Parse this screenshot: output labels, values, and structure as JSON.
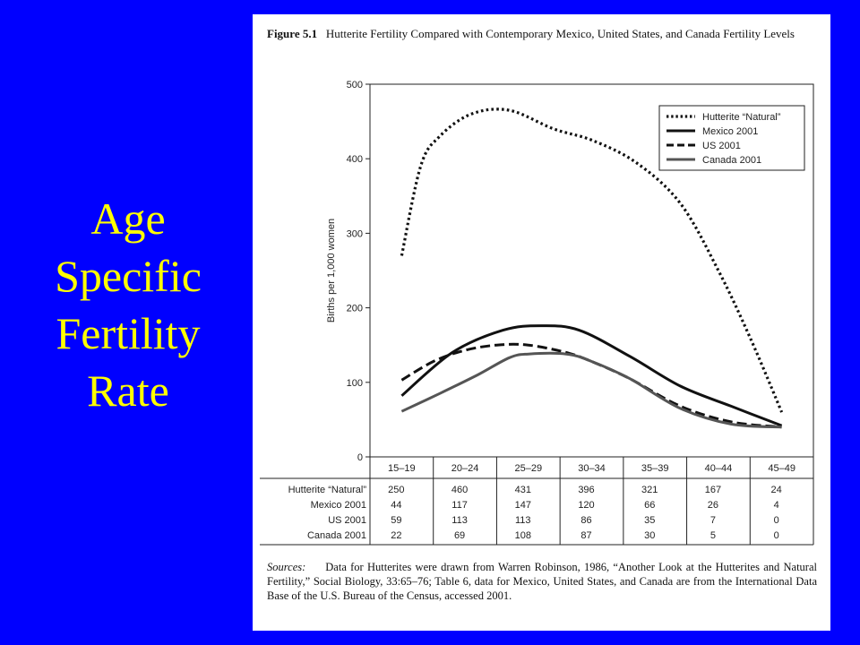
{
  "slide": {
    "title_lines": [
      "Age",
      "Specific",
      "Fertility",
      "Rate"
    ]
  },
  "figure": {
    "label": "Figure 5.1",
    "caption": "Hutterite Fertility Compared with Contemporary Mexico, United States, and Canada Fertility Levels",
    "sources_label": "Sources:",
    "sources_text": "Data for Hutterites were drawn from Warren Robinson, 1986, “Another Look at the Hutterites and Natural Fertility,” Social Biology, 33:65–76; Table 6, data for Mexico, United States, and Canada are from the International Data Base of the U.S. Bureau of the Census, accessed 2001."
  },
  "colors": {
    "background": "#0000ff",
    "title": "#ffff00",
    "panel": "#ffffff",
    "canada_line": "#555555",
    "ink": "#111111"
  },
  "chart_data": {
    "type": "line",
    "categories": [
      "15–19",
      "20–24",
      "25–29",
      "30–34",
      "35–39",
      "40–44",
      "45–49"
    ],
    "ylabel": "Births per 1,000 women",
    "xlabel": "",
    "ylim": [
      0,
      500
    ],
    "yticks": [
      0,
      100,
      200,
      300,
      400,
      500
    ],
    "legend_position": "top-right",
    "grid": false,
    "series": [
      {
        "name": "Hutterite “Natural”",
        "style": "dotted",
        "x": [
          0,
          0.3,
          0.6,
          1.1,
          1.7,
          2.4,
          3.0,
          3.7,
          4.4,
          5.0,
          5.5,
          6.0
        ],
        "values": [
          270,
          390,
          430,
          460,
          465,
          440,
          425,
          395,
          340,
          250,
          160,
          60
        ]
      },
      {
        "name": "Mexico 2001",
        "style": "solid",
        "x": [
          0,
          0.8,
          1.6,
          2.2,
          2.8,
          3.6,
          4.4,
          5.2,
          6.0
        ],
        "values": [
          82,
          140,
          170,
          176,
          170,
          135,
          95,
          68,
          42
        ]
      },
      {
        "name": "US 2001",
        "style": "dashed",
        "x": [
          0,
          0.5,
          1.0,
          1.5,
          2.0,
          2.6,
          3.0,
          3.6,
          4.4,
          5.2,
          6.0
        ],
        "values": [
          103,
          128,
          143,
          150,
          150,
          140,
          128,
          105,
          68,
          47,
          40
        ]
      },
      {
        "name": "Canada 2001",
        "style": "gray",
        "x": [
          0,
          0.6,
          1.2,
          1.7,
          2.0,
          2.6,
          3.0,
          3.6,
          4.4,
          5.2,
          6.0
        ],
        "values": [
          61,
          85,
          110,
          133,
          138,
          138,
          128,
          105,
          65,
          44,
          40
        ]
      }
    ],
    "table": {
      "columns": [
        "15–19",
        "20–24",
        "25–29",
        "30–34",
        "35–39",
        "40–44",
        "45–49"
      ],
      "rows": [
        {
          "label": "Hutterite “Natural”",
          "values": [
            "250",
            "460",
            "431",
            "396",
            "321",
            "167",
            "24"
          ]
        },
        {
          "label": "Mexico 2001",
          "values": [
            "44",
            "117",
            "147",
            "120",
            "66",
            "26",
            "4"
          ]
        },
        {
          "label": "US 2001",
          "values": [
            "59",
            "113",
            "113",
            "86",
            "35",
            "7",
            "0"
          ]
        },
        {
          "label": "Canada 2001",
          "values": [
            "22",
            "69",
            "108",
            "87",
            "30",
            "5",
            "0"
          ]
        }
      ]
    }
  }
}
